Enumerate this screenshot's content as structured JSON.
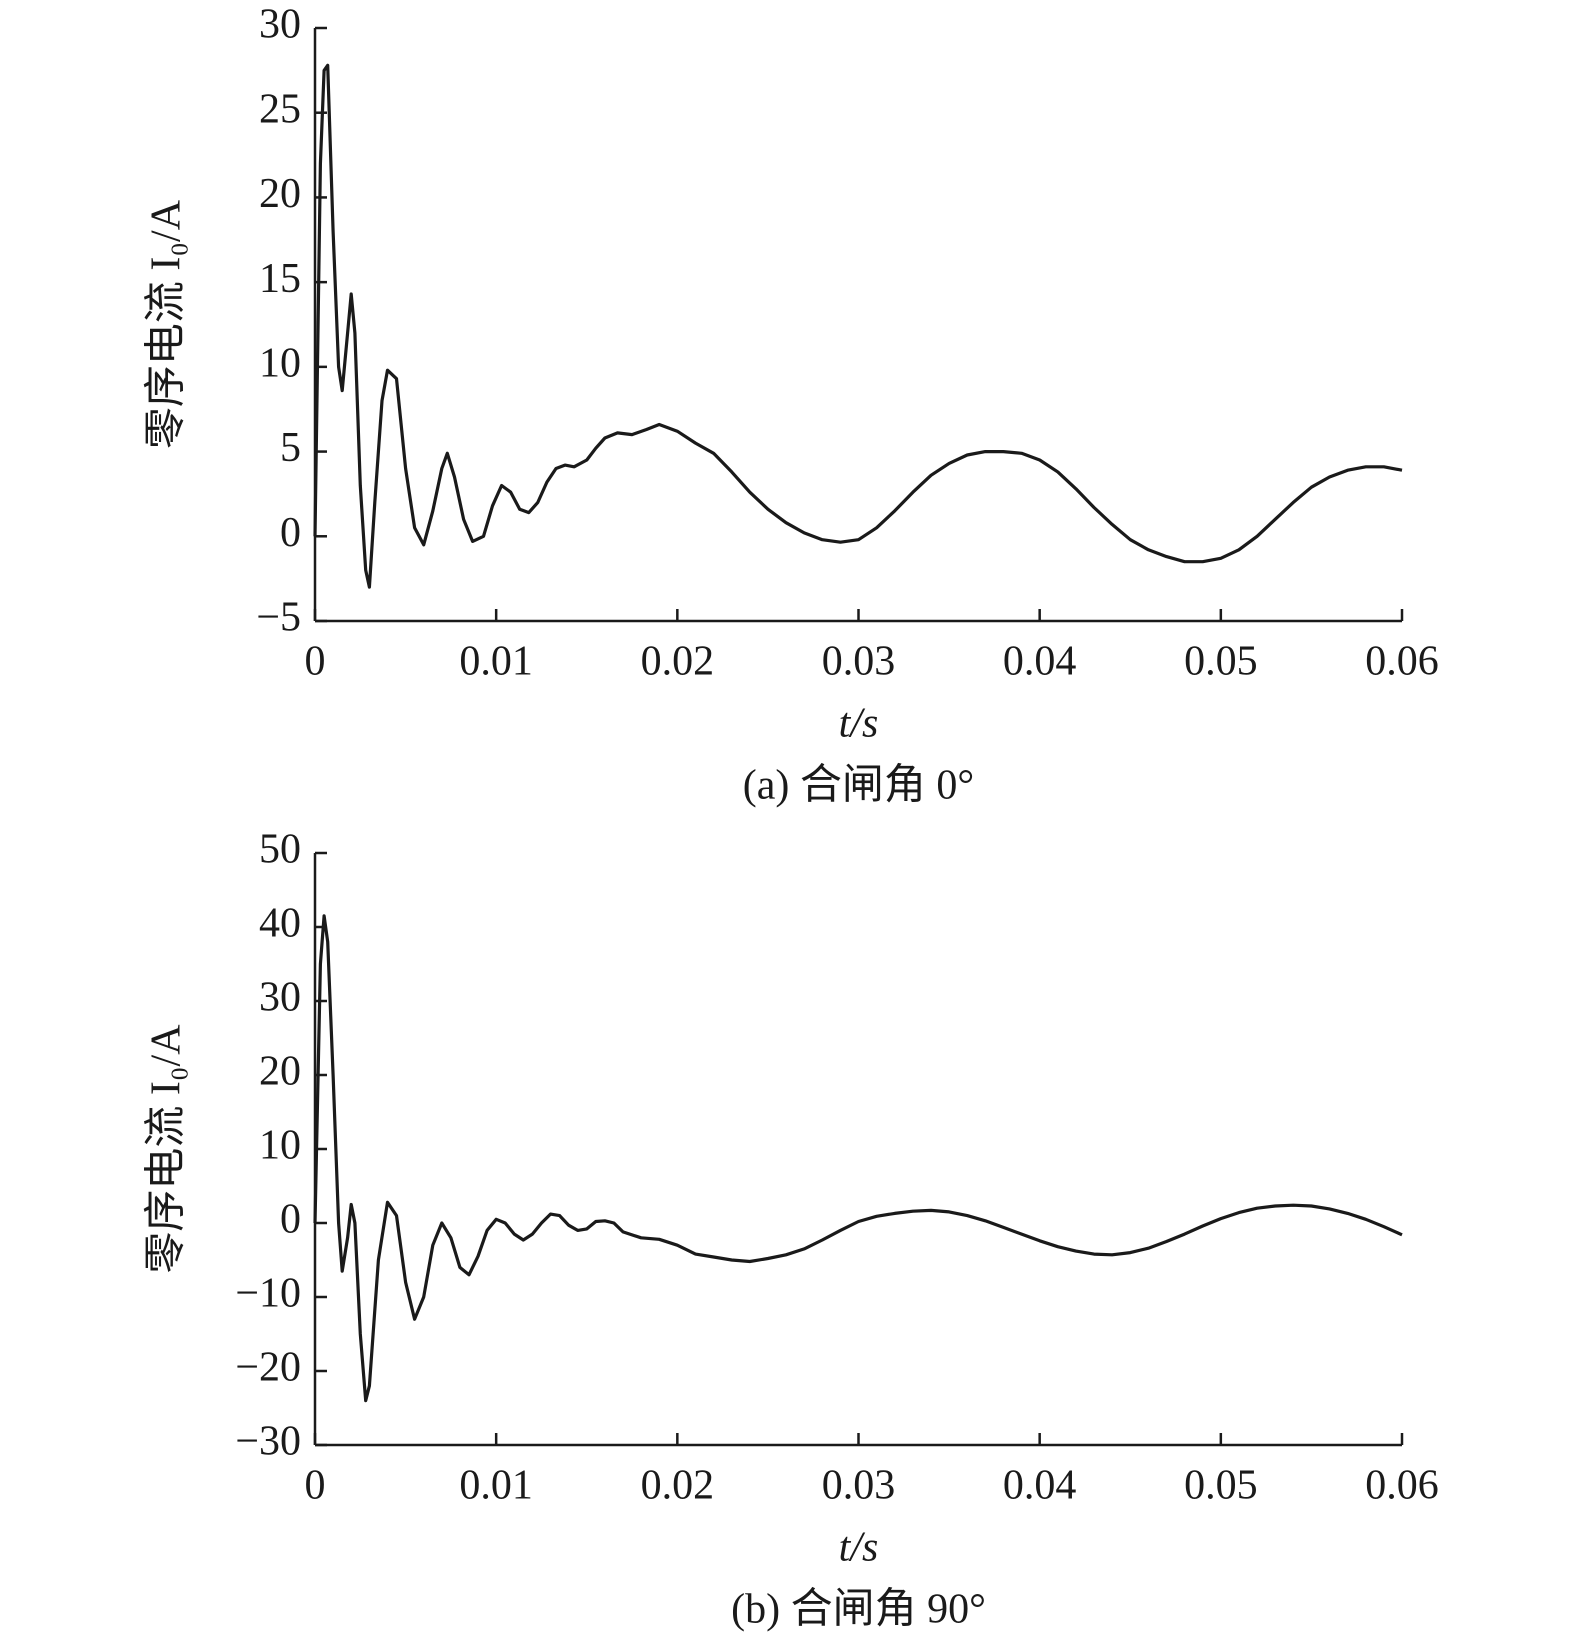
{
  "chart_data": [
    {
      "type": "line",
      "title": "(a) 合闸角 0°",
      "xlabel": "t/s",
      "ylabel": "零序电流 I₀/A",
      "color": "#1a1a1a",
      "x": [
        0,
        0.0003,
        0.0005,
        0.0007,
        0.001,
        0.0013,
        0.0015,
        0.0018,
        0.002,
        0.0022,
        0.0025,
        0.0028,
        0.003,
        0.0033,
        0.0037,
        0.004,
        0.0045,
        0.005,
        0.0055,
        0.006,
        0.0065,
        0.007,
        0.0073,
        0.0077,
        0.0082,
        0.0087,
        0.0093,
        0.0098,
        0.0103,
        0.0108,
        0.0113,
        0.0118,
        0.0123,
        0.0128,
        0.0133,
        0.0138,
        0.0143,
        0.015,
        0.0155,
        0.016,
        0.0167,
        0.0175,
        0.0183,
        0.019,
        0.02,
        0.021,
        0.022,
        0.023,
        0.024,
        0.025,
        0.026,
        0.027,
        0.028,
        0.029,
        0.03,
        0.031,
        0.032,
        0.033,
        0.034,
        0.035,
        0.036,
        0.037,
        0.038,
        0.039,
        0.04,
        0.041,
        0.042,
        0.043,
        0.044,
        0.045,
        0.046,
        0.047,
        0.048,
        0.049,
        0.05,
        0.051,
        0.052,
        0.053,
        0.054,
        0.055,
        0.056,
        0.057,
        0.058,
        0.059,
        0.06
      ],
      "values": [
        0,
        22,
        27.5,
        27.8,
        18,
        10,
        8.6,
        12,
        14.3,
        12,
        3,
        -2,
        -3,
        2,
        8,
        9.8,
        9.3,
        4,
        0.5,
        -0.5,
        1.5,
        4,
        4.9,
        3.5,
        1,
        -0.3,
        0,
        1.8,
        3,
        2.6,
        1.6,
        1.4,
        2,
        3.2,
        4,
        4.2,
        4.1,
        4.5,
        5.2,
        5.8,
        6.1,
        6,
        6.3,
        6.6,
        6.2,
        5.5,
        4.9,
        3.8,
        2.6,
        1.6,
        0.8,
        0.2,
        -0.2,
        -0.35,
        -0.2,
        0.5,
        1.5,
        2.6,
        3.6,
        4.3,
        4.8,
        5,
        5,
        4.9,
        4.5,
        3.8,
        2.8,
        1.7,
        0.7,
        -0.2,
        -0.8,
        -1.2,
        -1.5,
        -1.5,
        -1.3,
        -0.8,
        0,
        1,
        2,
        2.9,
        3.5,
        3.9,
        4.1,
        4.1,
        3.9
      ],
      "xlim": [
        0,
        0.06
      ],
      "xticks": [
        0,
        0.01,
        0.02,
        0.03,
        0.04,
        0.05,
        0.06
      ],
      "ylim": [
        -5,
        30
      ],
      "yticks": [
        {
          "value": -5,
          "label": "−5"
        },
        0,
        5,
        10,
        15,
        20,
        25,
        30
      ]
    },
    {
      "type": "line",
      "title": "(b) 合闸角 90°",
      "xlabel": "t/s",
      "ylabel": "零序电流 I₀/A",
      "color": "#1a1a1a",
      "x": [
        0,
        0.0003,
        0.0005,
        0.0007,
        0.001,
        0.0013,
        0.0015,
        0.0018,
        0.002,
        0.0022,
        0.0025,
        0.0028,
        0.003,
        0.0035,
        0.004,
        0.0045,
        0.005,
        0.0055,
        0.006,
        0.0065,
        0.007,
        0.0075,
        0.008,
        0.0085,
        0.009,
        0.0095,
        0.01,
        0.0105,
        0.011,
        0.0115,
        0.012,
        0.0125,
        0.013,
        0.0135,
        0.014,
        0.0145,
        0.015,
        0.0155,
        0.016,
        0.0165,
        0.017,
        0.018,
        0.019,
        0.02,
        0.021,
        0.022,
        0.023,
        0.024,
        0.025,
        0.026,
        0.027,
        0.028,
        0.029,
        0.03,
        0.031,
        0.032,
        0.033,
        0.034,
        0.035,
        0.036,
        0.037,
        0.038,
        0.039,
        0.04,
        0.041,
        0.042,
        0.043,
        0.044,
        0.045,
        0.046,
        0.047,
        0.048,
        0.049,
        0.05,
        0.051,
        0.052,
        0.053,
        0.054,
        0.055,
        0.056,
        0.057,
        0.058,
        0.059,
        0.06
      ],
      "values": [
        0,
        35,
        41.5,
        38,
        20,
        0,
        -6.5,
        -2,
        2.5,
        0,
        -15,
        -24,
        -22,
        -5,
        2.8,
        1,
        -8,
        -13,
        -10,
        -3,
        0,
        -2,
        -6,
        -7,
        -4.5,
        -1,
        0.5,
        0,
        -1.5,
        -2.3,
        -1.5,
        0,
        1.2,
        1,
        -0.3,
        -1,
        -0.8,
        0.2,
        0.3,
        0,
        -1.2,
        -2,
        -2.2,
        -3,
        -4.2,
        -4.6,
        -5,
        -5.2,
        -4.8,
        -4.3,
        -3.5,
        -2.3,
        -1,
        0.2,
        0.9,
        1.3,
        1.6,
        1.7,
        1.5,
        1,
        0.3,
        -0.6,
        -1.5,
        -2.4,
        -3.2,
        -3.8,
        -4.2,
        -4.3,
        -4,
        -3.4,
        -2.5,
        -1.5,
        -0.4,
        0.6,
        1.4,
        2,
        2.3,
        2.4,
        2.3,
        1.9,
        1.3,
        0.5,
        -0.5,
        -1.6
      ],
      "xlim": [
        0,
        0.06
      ],
      "xticks": [
        0,
        0.01,
        0.02,
        0.03,
        0.04,
        0.05,
        0.06
      ],
      "ylim": [
        -30,
        50
      ],
      "yticks": [
        {
          "value": -30,
          "label": "−30"
        },
        {
          "value": -20,
          "label": "−20"
        },
        {
          "value": -10,
          "label": "−10"
        },
        0,
        10,
        20,
        30,
        40,
        50
      ]
    }
  ]
}
